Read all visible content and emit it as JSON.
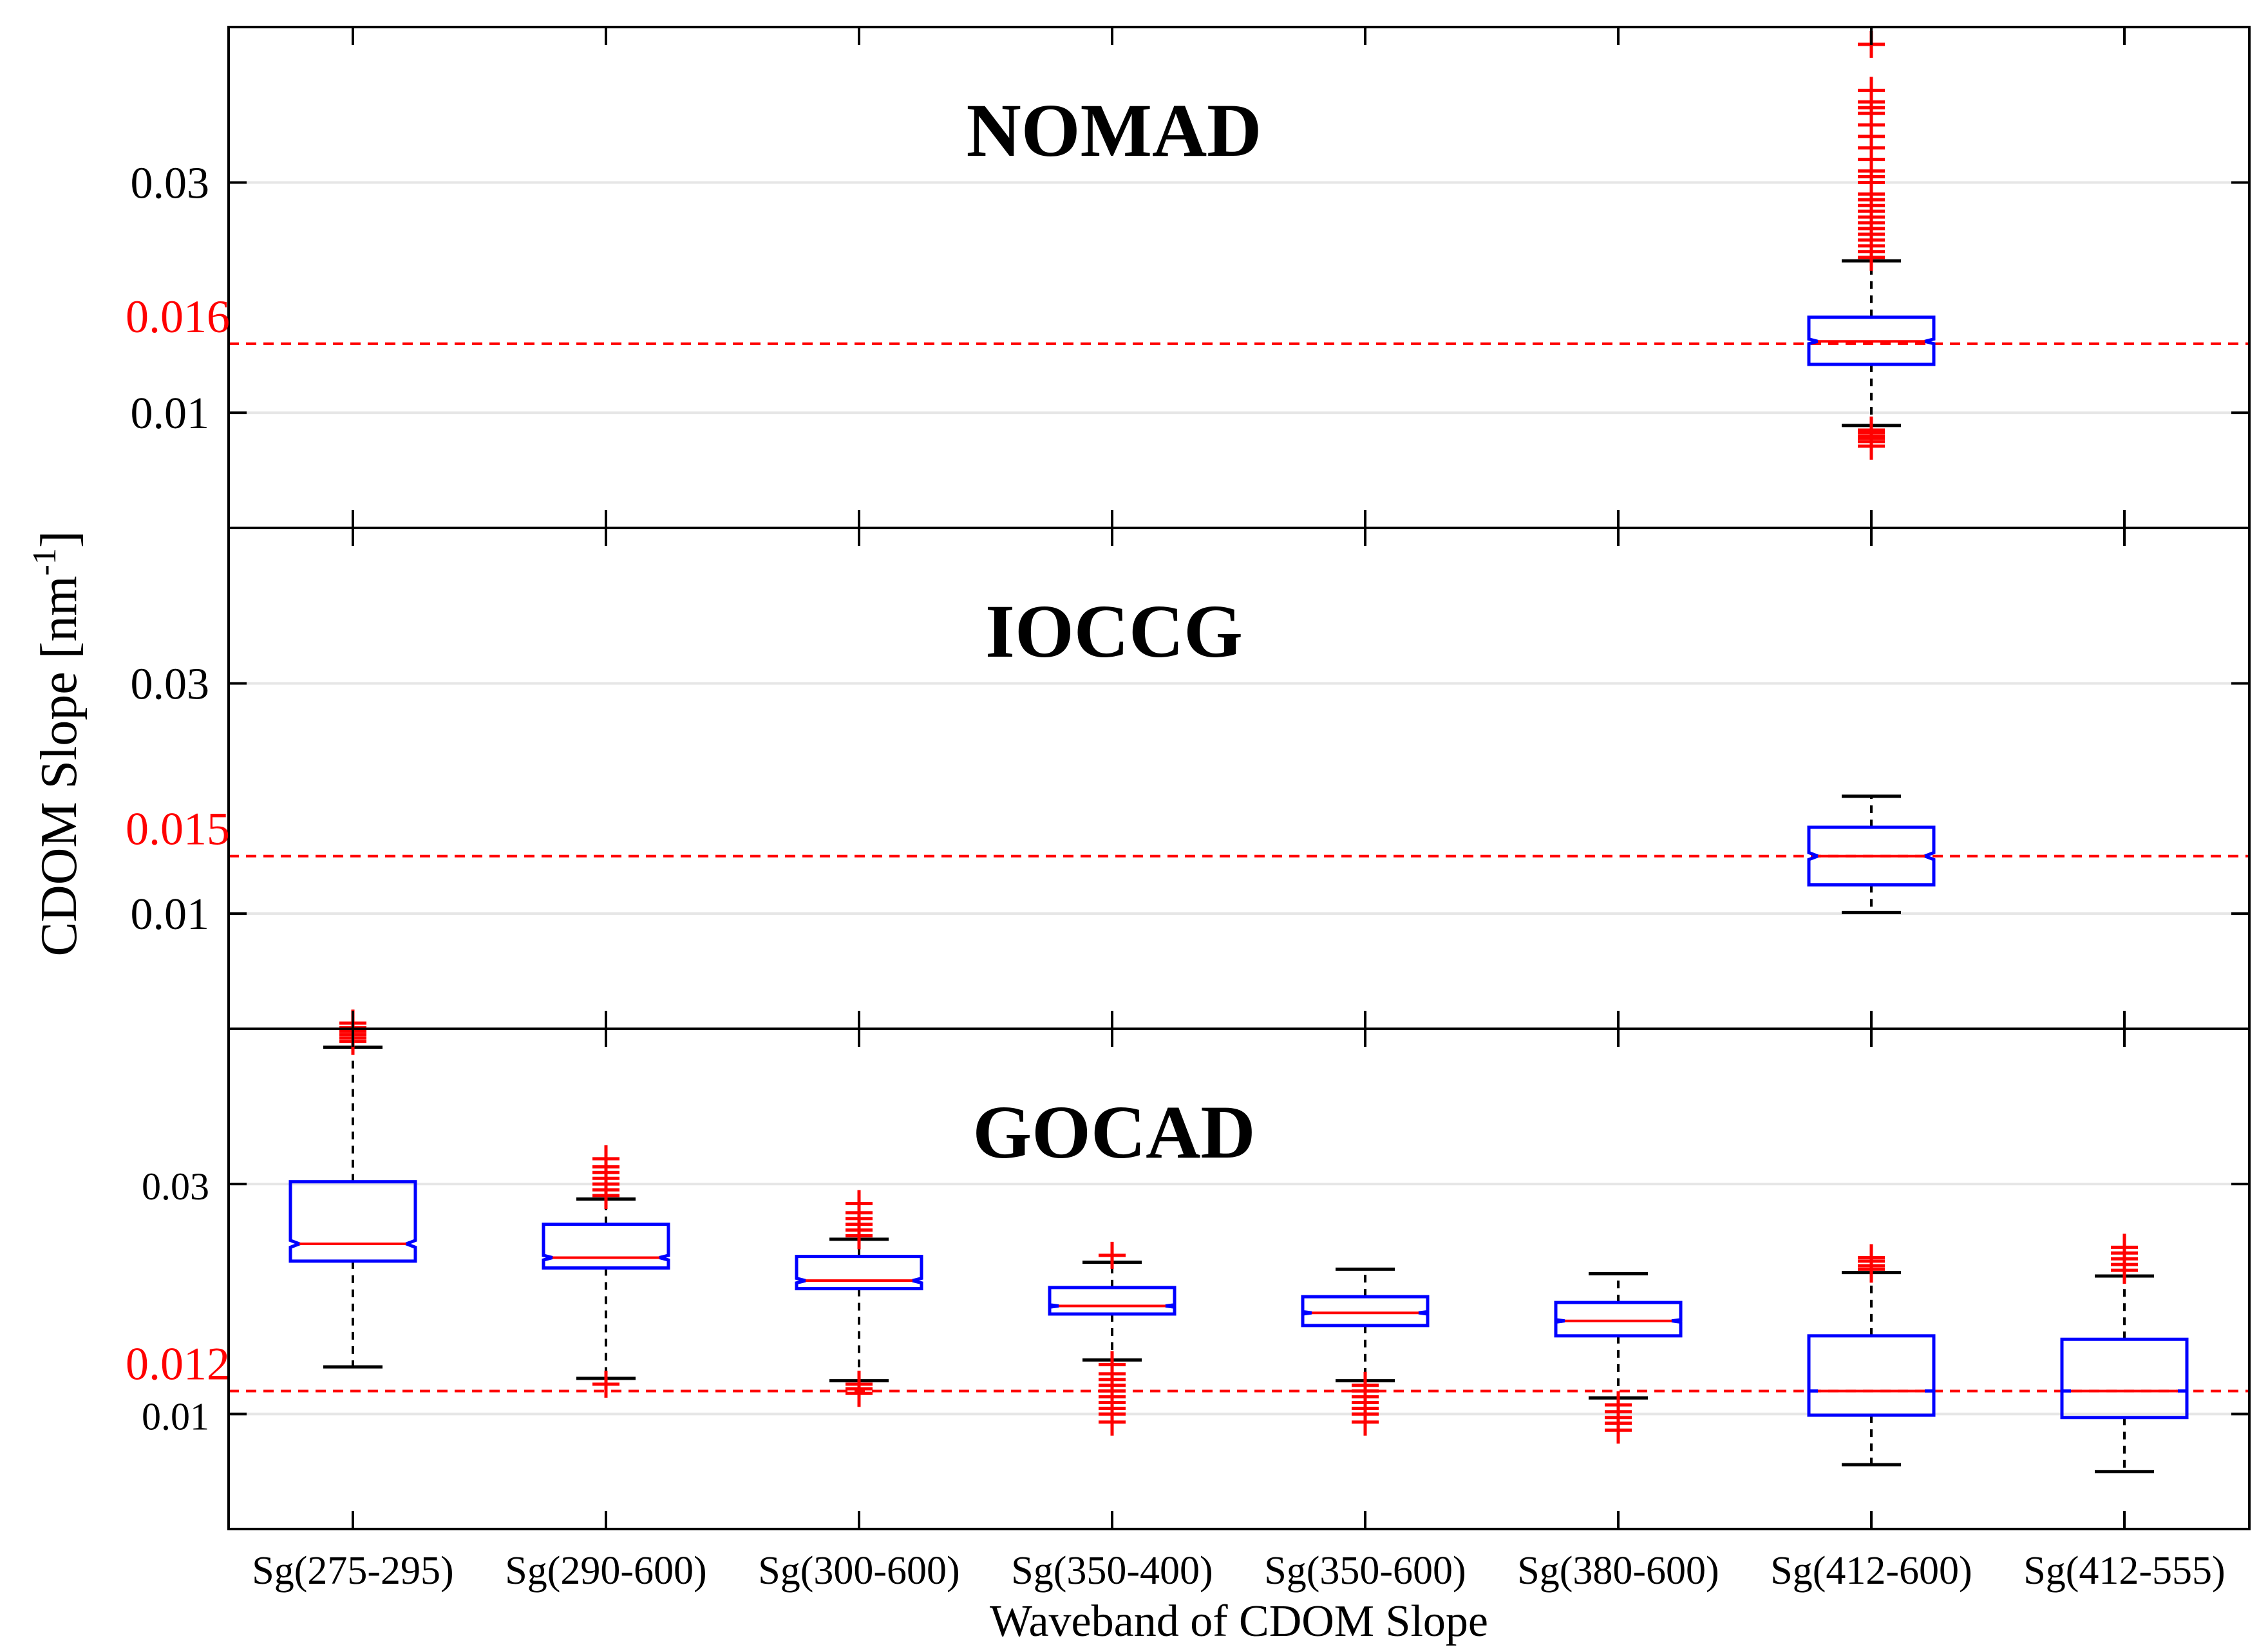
{
  "chart_data": {
    "type": "boxplot",
    "ylabel_main": "CDOM Slope [nm",
    "ylabel_sup": "-1",
    "ylabel_close": "]",
    "xlabel": "Waveband of CDOM Slope",
    "categories": [
      "Sg(275-295)",
      "Sg(290-600)",
      "Sg(300-600)",
      "Sg(350-400)",
      "Sg(350-600)",
      "Sg(380-600)",
      "Sg(412-600)",
      "Sg(412-555)"
    ],
    "colors": {
      "box": "#0000ff",
      "median": "#ff0000",
      "whisker": "#000000",
      "outlier": "#ff0000",
      "reference": "#ff0000",
      "grid": "#e6e6e6"
    },
    "panels": [
      {
        "name": "NOMAD",
        "ylim": [
          0.0,
          0.0435
        ],
        "yticks": [
          0.01,
          0.03
        ],
        "tick_labels": [
          "0.01",
          "0.03"
        ],
        "reference": {
          "value": 0.016,
          "label": "0.016"
        },
        "boxes": [
          {
            "category_index": 6,
            "q1": 0.0142,
            "median": 0.0162,
            "q3": 0.0183,
            "whisker_low": 0.0089,
            "whisker_high": 0.0232,
            "notch_low": 0.016,
            "notch_high": 0.0164,
            "outliers": [
              0.0085,
              0.0083,
              0.008,
              0.0078,
              0.0075,
              0.0071,
              0.0235,
              0.024,
              0.0245,
              0.025,
              0.0255,
              0.026,
              0.0265,
              0.027,
              0.0275,
              0.028,
              0.0285,
              0.029,
              0.03,
              0.0305,
              0.031,
              0.032,
              0.033,
              0.034,
              0.035,
              0.036,
              0.0365,
              0.037,
              0.038,
              0.042
            ]
          }
        ]
      },
      {
        "name": "IOCCG",
        "ylim": [
          0.0,
          0.0435
        ],
        "yticks": [
          0.01,
          0.03
        ],
        "tick_labels": [
          "0.01",
          "0.03"
        ],
        "reference": {
          "value": 0.015,
          "label": "0.015"
        },
        "boxes": [
          {
            "category_index": 6,
            "q1": 0.0125,
            "median": 0.015,
            "q3": 0.0175,
            "whisker_low": 0.0101,
            "whisker_high": 0.0202,
            "notch_low": 0.0147,
            "notch_high": 0.0153,
            "outliers": []
          }
        ]
      },
      {
        "name": "GOCAD",
        "ylim": [
          0.0,
          0.0435
        ],
        "yticks": [
          0.01,
          0.03
        ],
        "tick_labels": [
          "0.01",
          "0.03"
        ],
        "reference": {
          "value": 0.012,
          "label": "0.012"
        },
        "boxes": [
          {
            "category_index": 0,
            "q1": 0.0233,
            "median": 0.0248,
            "q3": 0.0302,
            "whisker_low": 0.0141,
            "whisker_high": 0.0419,
            "notch_low": 0.0245,
            "notch_high": 0.0251,
            "outliers": [
              0.0424,
              0.0427,
              0.043,
              0.0433,
              0.0436,
              0.044
            ]
          },
          {
            "category_index": 1,
            "q1": 0.0227,
            "median": 0.0236,
            "q3": 0.0265,
            "whisker_low": 0.0131,
            "whisker_high": 0.0287,
            "notch_low": 0.0234,
            "notch_high": 0.0238,
            "outliers": [
              0.0126,
              0.029,
              0.0295,
              0.03,
              0.0305,
              0.031,
              0.0315,
              0.0322
            ]
          },
          {
            "category_index": 2,
            "q1": 0.0209,
            "median": 0.0216,
            "q3": 0.0237,
            "whisker_low": 0.0129,
            "whisker_high": 0.0252,
            "notch_low": 0.0214,
            "notch_high": 0.0218,
            "outliers": [
              0.0118,
              0.0122,
              0.0126,
              0.0255,
              0.026,
              0.0265,
              0.027,
              0.0275,
              0.0283
            ]
          },
          {
            "category_index": 3,
            "q1": 0.0187,
            "median": 0.0194,
            "q3": 0.021,
            "whisker_low": 0.0147,
            "whisker_high": 0.0232,
            "notch_low": 0.0193,
            "notch_high": 0.0195,
            "outliers": [
              0.0093,
              0.01,
              0.0105,
              0.011,
              0.0115,
              0.012,
              0.0125,
              0.013,
              0.0135,
              0.0143,
              0.0238
            ]
          },
          {
            "category_index": 4,
            "q1": 0.0177,
            "median": 0.0188,
            "q3": 0.0202,
            "whisker_low": 0.0129,
            "whisker_high": 0.0226,
            "notch_low": 0.0187,
            "notch_high": 0.0189,
            "outliers": [
              0.0093,
              0.01,
              0.0105,
              0.011,
              0.0115,
              0.012,
              0.0125
            ]
          },
          {
            "category_index": 5,
            "q1": 0.0168,
            "median": 0.0181,
            "q3": 0.0197,
            "whisker_low": 0.0114,
            "whisker_high": 0.0222,
            "notch_low": 0.018,
            "notch_high": 0.0182,
            "outliers": [
              0.0086,
              0.0092,
              0.0097,
              0.0102,
              0.0108
            ]
          },
          {
            "category_index": 6,
            "q1": 0.0099,
            "median": 0.012,
            "q3": 0.0168,
            "whisker_low": 0.0056,
            "whisker_high": 0.0223,
            "notch_low": 0.012,
            "notch_high": 0.012,
            "outliers": [
              0.0226,
              0.0229,
              0.0233,
              0.0236
            ]
          },
          {
            "category_index": 7,
            "q1": 0.0097,
            "median": 0.012,
            "q3": 0.0165,
            "whisker_low": 0.005,
            "whisker_high": 0.022,
            "notch_low": 0.012,
            "notch_high": 0.012,
            "outliers": [
              0.0225,
              0.023,
              0.0235,
              0.024,
              0.0245
            ]
          }
        ]
      }
    ]
  }
}
